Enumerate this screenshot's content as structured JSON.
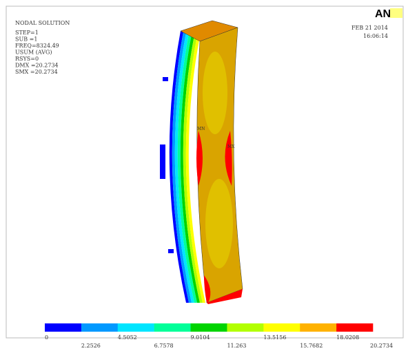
{
  "header": {
    "title": "NODAL SOLUTION",
    "info_lines": [
      "STEP=1",
      "SUB =1",
      "FREQ=8324.49",
      "USUM      (AVG)",
      "RSYS=0",
      "DMX =20.2734",
      "SMX =20.2734"
    ],
    "date": "FEB 21 2014",
    "time": "16:06:14",
    "logo": "AN"
  },
  "legend": {
    "labels": [
      "0",
      "2.2526",
      "4.5052",
      "6.7578",
      "9.0104",
      "11.263",
      "13.5156",
      "15.7682",
      "18.0208",
      "20.2734"
    ],
    "colors": [
      "#0000ff",
      "#0099ff",
      "#00e5ff",
      "#00ff99",
      "#00d400",
      "#b2ff00",
      "#ffff00",
      "#ffb200",
      "#ff0000"
    ]
  },
  "markers": [
    "MN",
    "MX"
  ]
}
